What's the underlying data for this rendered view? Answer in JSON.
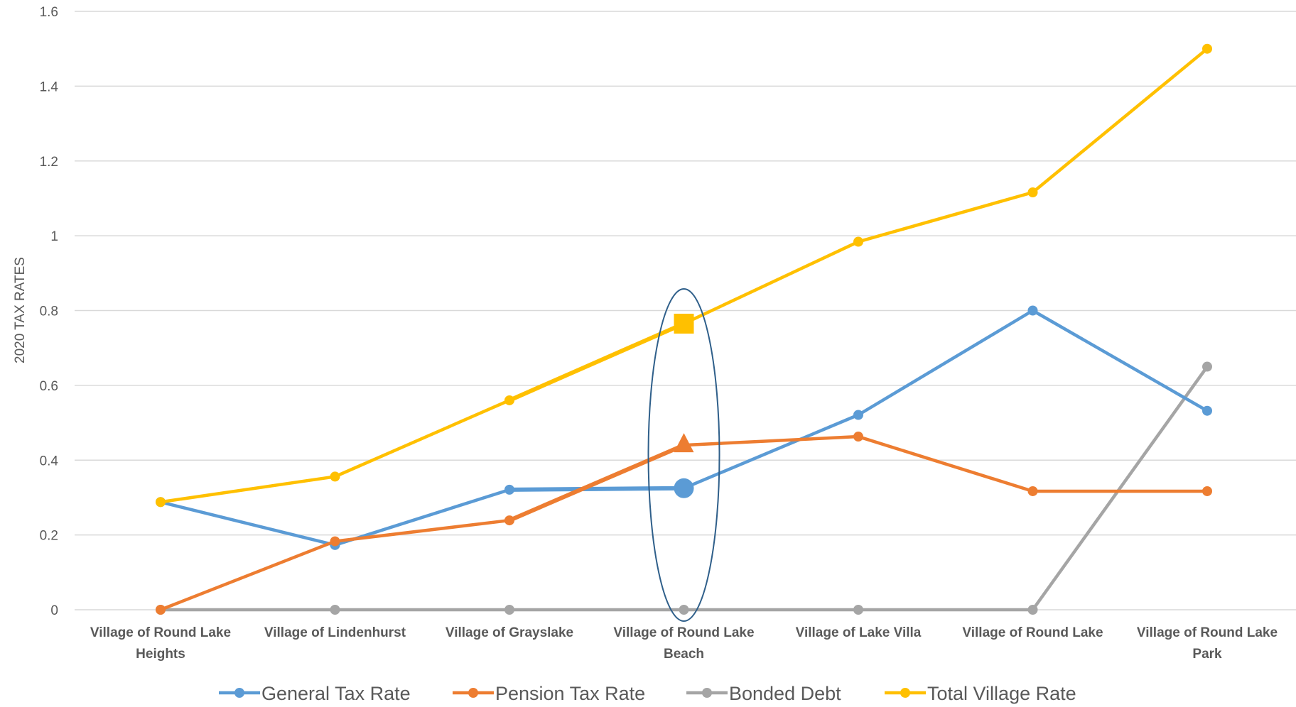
{
  "chart_data": {
    "type": "line",
    "title": "",
    "xlabel": "",
    "ylabel": "2020 TAX RATES",
    "ylim": [
      0,
      1.6
    ],
    "yticks": [
      "0",
      "0.2",
      "0.4",
      "0.6",
      "0.8",
      "1",
      "1.2",
      "1.4",
      "1.6"
    ],
    "grid": true,
    "legend_position": "bottom",
    "categories": [
      [
        "Village of Round Lake",
        "Heights"
      ],
      [
        "Village of Lindenhurst"
      ],
      [
        "Village of Grayslake"
      ],
      [
        "Village of Round Lake",
        "Beach"
      ],
      [
        "Village of Lake Villa"
      ],
      [
        "Village of Round Lake"
      ],
      [
        "Village of Round Lake",
        "Park"
      ]
    ],
    "series": [
      {
        "name": "General Tax Rate",
        "color": "#5B9BD5",
        "values": [
          0.288,
          0.173,
          0.321,
          0.325,
          0.521,
          0.8,
          0.532
        ]
      },
      {
        "name": "Pension Tax Rate",
        "color": "#ED7D31",
        "values": [
          0.0,
          0.183,
          0.239,
          0.44,
          0.463,
          0.317,
          0.317
        ]
      },
      {
        "name": "Bonded Debt",
        "color": "#A5A5A5",
        "values": [
          0.0,
          0.0,
          0.0,
          0.0,
          0.0,
          0.0,
          0.65
        ]
      },
      {
        "name": "Total Village Rate",
        "color": "#FFC000",
        "values": [
          0.288,
          0.356,
          0.56,
          0.765,
          0.984,
          1.116,
          1.5
        ]
      }
    ],
    "highlight": {
      "category_index": 3,
      "shape": "ellipse",
      "color": "#2F5F8A",
      "marker_shapes": {
        "General Tax Rate": "circle",
        "Pension Tax Rate": "triangle",
        "Total Village Rate": "square"
      }
    }
  }
}
